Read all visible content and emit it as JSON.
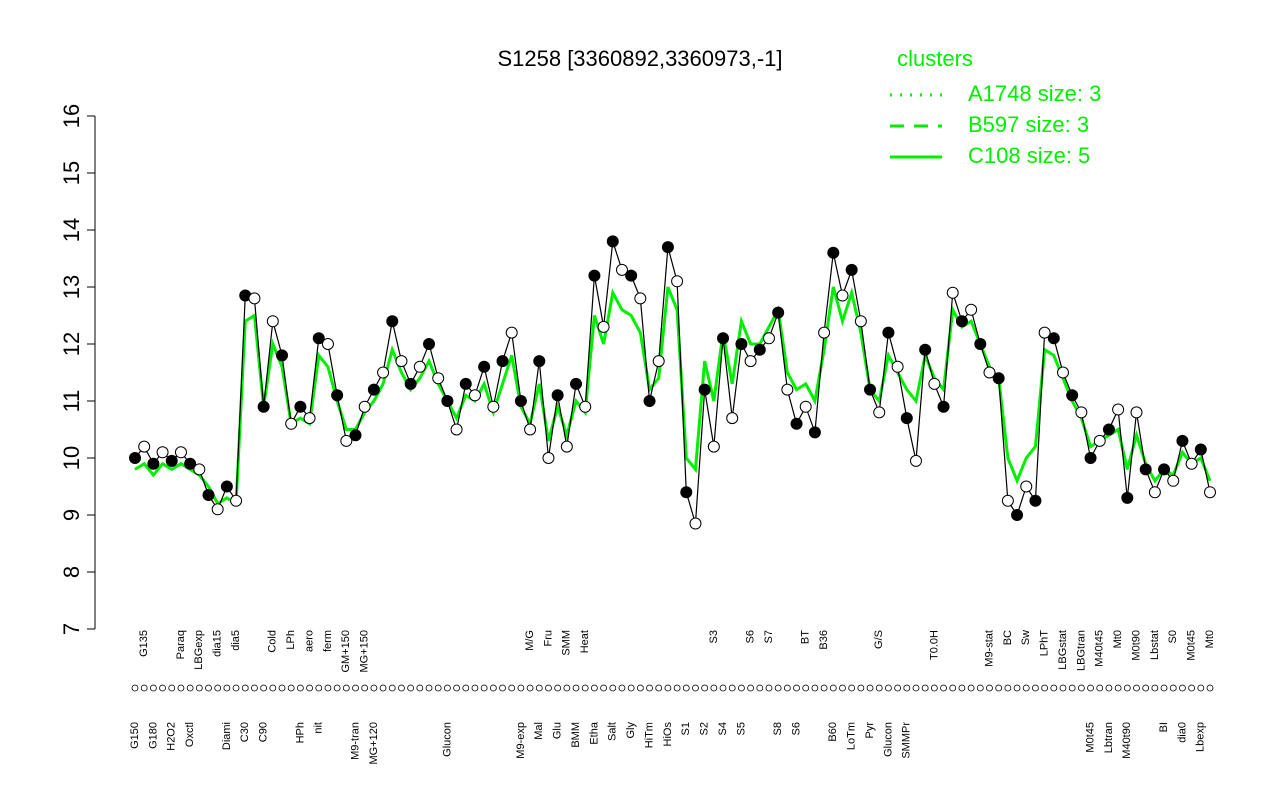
{
  "chart_data": {
    "type": "line",
    "title": "S1258 [3360892,3360973,-1]",
    "legend_title": "clusters",
    "legend": "top-right",
    "categories": [
      "G150",
      "G135",
      "G180",
      null,
      "H2O2",
      "Paraq",
      "Oxctl",
      "LBGexp",
      null,
      "dia15",
      "Diami",
      "dia5",
      "C30",
      null,
      "C90",
      "Cold",
      null,
      "LPh",
      "HPh",
      "aero",
      "nit",
      "ferm",
      null,
      "GM+150",
      "M9-tran",
      "MG+150",
      "MG+120",
      null,
      null,
      null,
      null,
      null,
      null,
      null,
      "Glucon",
      null,
      null,
      null,
      null,
      null,
      null,
      null,
      "M9-exp",
      "M/G",
      "Mal",
      "Fru",
      "Glu",
      "SMM",
      "BMM",
      "Heat",
      "Etha",
      null,
      "Salt",
      null,
      "Gly",
      null,
      "HiTm",
      null,
      "HiOs",
      null,
      "S1",
      null,
      "S2",
      "S3",
      "S4",
      null,
      "S5",
      "S6",
      null,
      "S7",
      "S8",
      null,
      "S6",
      "BT",
      null,
      "B36",
      "B60",
      null,
      "LoTm",
      null,
      "Pyr",
      "G/S",
      "Glucon",
      null,
      "SMMPr",
      null,
      null,
      "T0.0H",
      null,
      null,
      null,
      null,
      null,
      "M9-stat",
      null,
      "BC",
      null,
      "Sw",
      null,
      "LPhT",
      null,
      "LBGstat",
      null,
      "LBGtran",
      "M0t45",
      "M40t45",
      "Lbtran",
      "Mt0",
      "M40t90",
      "M0t90",
      null,
      "Lbstat",
      "BI",
      "S0",
      "dia0",
      "M0t45",
      "Lbexp",
      "Mt0"
    ],
    "values": [
      10.0,
      10.2,
      9.9,
      10.1,
      9.95,
      10.1,
      9.9,
      9.8,
      9.35,
      9.1,
      9.5,
      9.25,
      12.85,
      12.8,
      10.9,
      12.4,
      11.8,
      10.6,
      10.9,
      10.7,
      12.1,
      12.0,
      11.1,
      10.3,
      10.4,
      10.9,
      11.2,
      11.5,
      12.4,
      11.7,
      11.3,
      11.6,
      12.0,
      11.4,
      11.0,
      10.5,
      11.3,
      11.1,
      11.6,
      10.9,
      11.7,
      12.2,
      11.0,
      10.5,
      11.7,
      10.0,
      11.1,
      10.2,
      11.3,
      10.9,
      13.2,
      12.3,
      13.8,
      13.3,
      13.2,
      12.8,
      11.0,
      11.7,
      13.7,
      13.1,
      9.4,
      8.85,
      11.2,
      10.2,
      12.1,
      10.7,
      12.0,
      11.7,
      11.9,
      12.1,
      12.55,
      11.2,
      10.6,
      10.9,
      10.45,
      12.2,
      13.6,
      12.85,
      13.3,
      12.4,
      11.2,
      10.8,
      12.2,
      11.6,
      10.7,
      9.95,
      11.9,
      11.3,
      10.9,
      12.9,
      12.4,
      12.6,
      12.0,
      11.5,
      11.4,
      9.25,
      9.0,
      9.5,
      9.25,
      12.2,
      12.1,
      11.5,
      11.1,
      10.8,
      10.0,
      10.3,
      10.5,
      10.85,
      9.3,
      10.8,
      9.8,
      9.4,
      9.8,
      9.6,
      10.3,
      9.9,
      10.15,
      9.4
    ],
    "color": "#000000",
    "series": [
      {
        "name": "A1748 size: 3",
        "color": "#00ee00",
        "style": "dotted"
      },
      {
        "name": "B597 size: 3",
        "color": "#00ee00",
        "style": "dashed"
      },
      {
        "name": "C108 size: 5",
        "color": "#00ee00",
        "style": "solid",
        "values": [
          9.8,
          9.9,
          9.7,
          9.9,
          9.8,
          9.9,
          9.8,
          9.7,
          9.5,
          9.2,
          9.3,
          9.2,
          12.4,
          12.5,
          10.9,
          12.0,
          11.6,
          10.6,
          10.7,
          10.6,
          11.8,
          11.6,
          11.0,
          10.5,
          10.5,
          10.8,
          11.0,
          11.3,
          11.9,
          11.5,
          11.2,
          11.4,
          11.7,
          11.3,
          11.0,
          10.7,
          11.1,
          11.0,
          11.3,
          10.8,
          11.3,
          11.8,
          10.9,
          10.6,
          11.3,
          10.3,
          10.9,
          10.4,
          11.0,
          10.8,
          12.5,
          12.0,
          12.9,
          12.6,
          12.5,
          12.2,
          11.2,
          11.4,
          13.0,
          12.6,
          10.0,
          9.8,
          11.7,
          11.0,
          12.2,
          11.3,
          12.4,
          12.0,
          12.0,
          12.3,
          12.6,
          11.5,
          11.2,
          11.3,
          11.0,
          11.9,
          13.0,
          12.4,
          12.9,
          12.2,
          11.2,
          11.0,
          11.8,
          11.5,
          11.2,
          11.0,
          11.8,
          11.4,
          11.2,
          12.6,
          12.3,
          12.4,
          12.0,
          11.6,
          11.4,
          10.0,
          9.6,
          10.0,
          10.2,
          11.9,
          11.8,
          11.4,
          11.0,
          10.7,
          10.2,
          10.3,
          10.4,
          10.5,
          9.8,
          10.4,
          9.9,
          9.6,
          9.8,
          9.7,
          10.1,
          9.9,
          10.0,
          9.6
        ]
      }
    ],
    "ylim": [
      7,
      16
    ],
    "yticks": [
      7,
      8,
      9,
      10,
      11,
      12,
      13,
      14,
      15,
      16
    ]
  }
}
